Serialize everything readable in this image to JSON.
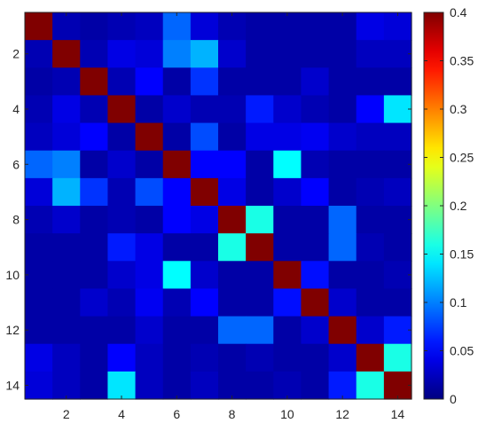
{
  "chart_data": {
    "type": "heatmap",
    "title": "",
    "xlabel": "",
    "ylabel": "",
    "x_categories": [
      1,
      2,
      3,
      4,
      5,
      6,
      7,
      8,
      9,
      10,
      11,
      12,
      13,
      14
    ],
    "y_categories": [
      1,
      2,
      3,
      4,
      5,
      6,
      7,
      8,
      9,
      10,
      11,
      12,
      13,
      14
    ],
    "x_tick_labels": [
      "2",
      "4",
      "6",
      "8",
      "10",
      "12",
      "14"
    ],
    "y_tick_labels": [
      "2",
      "4",
      "6",
      "8",
      "10",
      "12",
      "14"
    ],
    "colormap": "jet",
    "clim": [
      0,
      0.4
    ],
    "colorbar_ticks": [
      "0",
      "0.05",
      "0.1",
      "0.15",
      "0.2",
      "0.25",
      "0.3",
      "0.35",
      "0.4"
    ],
    "grid": false,
    "values": [
      [
        0.4,
        0.02,
        0.015,
        0.02,
        0.025,
        0.09,
        0.035,
        0.02,
        0.015,
        0.015,
        0.015,
        0.015,
        0.04,
        0.035
      ],
      [
        0.02,
        0.4,
        0.02,
        0.04,
        0.035,
        0.1,
        0.12,
        0.03,
        0.015,
        0.015,
        0.015,
        0.015,
        0.025,
        0.025
      ],
      [
        0.015,
        0.02,
        0.4,
        0.02,
        0.05,
        0.015,
        0.07,
        0.015,
        0.015,
        0.015,
        0.03,
        0.015,
        0.015,
        0.015
      ],
      [
        0.02,
        0.04,
        0.02,
        0.4,
        0.015,
        0.03,
        0.02,
        0.02,
        0.06,
        0.03,
        0.02,
        0.015,
        0.05,
        0.14
      ],
      [
        0.025,
        0.035,
        0.05,
        0.015,
        0.4,
        0.015,
        0.08,
        0.015,
        0.04,
        0.04,
        0.045,
        0.03,
        0.025,
        0.025
      ],
      [
        0.09,
        0.1,
        0.015,
        0.03,
        0.015,
        0.4,
        0.05,
        0.05,
        0.015,
        0.15,
        0.02,
        0.015,
        0.015,
        0.015
      ],
      [
        0.035,
        0.12,
        0.07,
        0.02,
        0.08,
        0.05,
        0.4,
        0.04,
        0.015,
        0.03,
        0.05,
        0.015,
        0.02,
        0.025
      ],
      [
        0.02,
        0.03,
        0.015,
        0.02,
        0.015,
        0.05,
        0.04,
        0.4,
        0.16,
        0.015,
        0.015,
        0.09,
        0.015,
        0.015
      ],
      [
        0.015,
        0.015,
        0.015,
        0.06,
        0.04,
        0.015,
        0.015,
        0.16,
        0.4,
        0.015,
        0.015,
        0.09,
        0.02,
        0.015
      ],
      [
        0.015,
        0.015,
        0.015,
        0.03,
        0.04,
        0.15,
        0.03,
        0.015,
        0.015,
        0.4,
        0.055,
        0.015,
        0.015,
        0.02
      ],
      [
        0.015,
        0.015,
        0.03,
        0.02,
        0.045,
        0.02,
        0.05,
        0.015,
        0.015,
        0.055,
        0.4,
        0.03,
        0.015,
        0.015
      ],
      [
        0.015,
        0.015,
        0.015,
        0.015,
        0.03,
        0.015,
        0.015,
        0.09,
        0.09,
        0.015,
        0.03,
        0.4,
        0.03,
        0.06
      ],
      [
        0.04,
        0.025,
        0.015,
        0.05,
        0.025,
        0.015,
        0.02,
        0.015,
        0.02,
        0.015,
        0.015,
        0.03,
        0.4,
        0.16
      ],
      [
        0.035,
        0.025,
        0.015,
        0.14,
        0.025,
        0.015,
        0.025,
        0.015,
        0.015,
        0.02,
        0.015,
        0.06,
        0.16,
        0.4
      ]
    ]
  }
}
